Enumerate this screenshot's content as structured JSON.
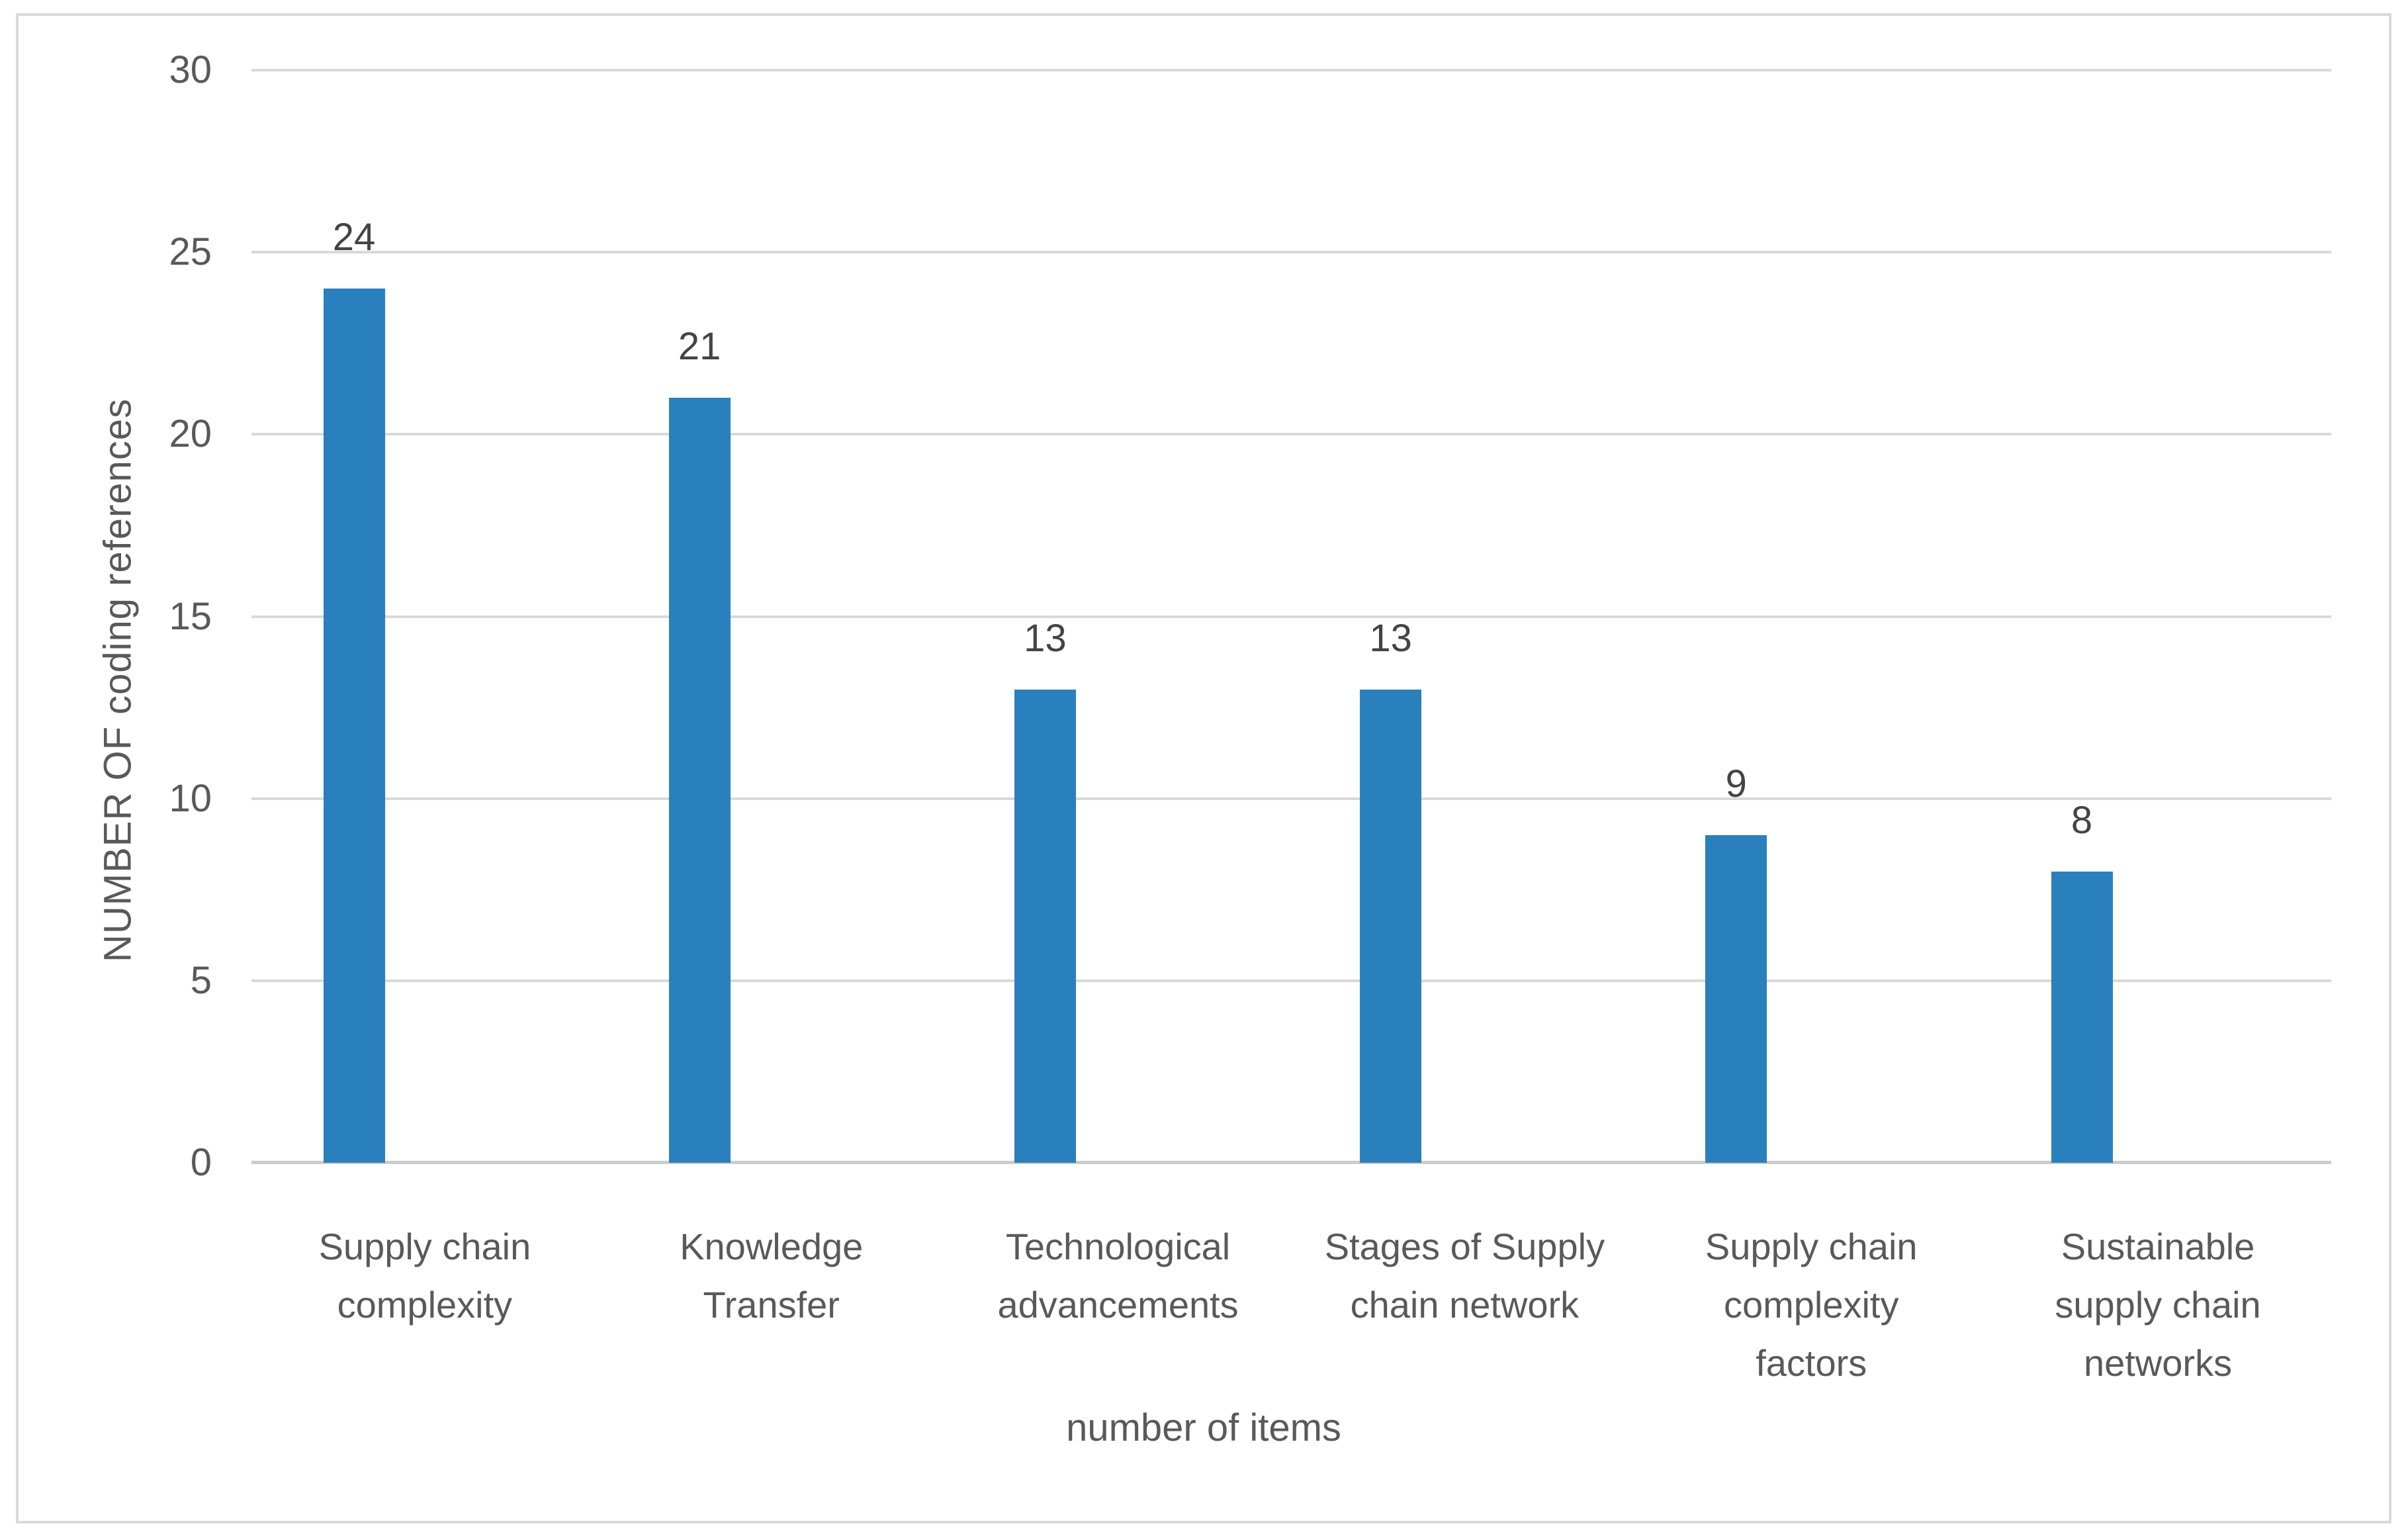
{
  "figure": {
    "background_color": "#FFFFFF",
    "border_color": "#D9D9D9"
  },
  "chart_data": {
    "type": "bar",
    "title": "",
    "categories": [
      "Supply chain complexity",
      "Knowledge Transfer",
      "Technological advancements",
      "Stages of Supply chain network",
      "Supply chain complexity factors",
      "Sustainable supply chain networks"
    ],
    "category_lines": [
      [
        "Supply chain",
        "complexity"
      ],
      [
        "Knowledge",
        "Transfer"
      ],
      [
        "Technological",
        "advancements"
      ],
      [
        "Stages of Supply",
        "chain network"
      ],
      [
        "Supply chain",
        "complexity",
        "factors"
      ],
      [
        "Sustainable",
        "supply chain",
        "networks"
      ]
    ],
    "values": [
      24,
      21,
      13,
      13,
      9,
      8
    ],
    "data_labels": [
      "24",
      "21",
      "13",
      "13",
      "9",
      "8"
    ],
    "xlabel": "number of items",
    "ylabel": "NUMBER OF coding references",
    "ylim": [
      0,
      30
    ],
    "yticks": [
      0,
      5,
      10,
      15,
      20,
      25,
      30
    ],
    "grid": true,
    "legend": false,
    "bar_color": "#2A80BC",
    "gridline_color": "#D9D9D9",
    "axis_line_color": "#CCCCCC",
    "tick_text_color": "#595959",
    "data_label_color": "#444444"
  }
}
